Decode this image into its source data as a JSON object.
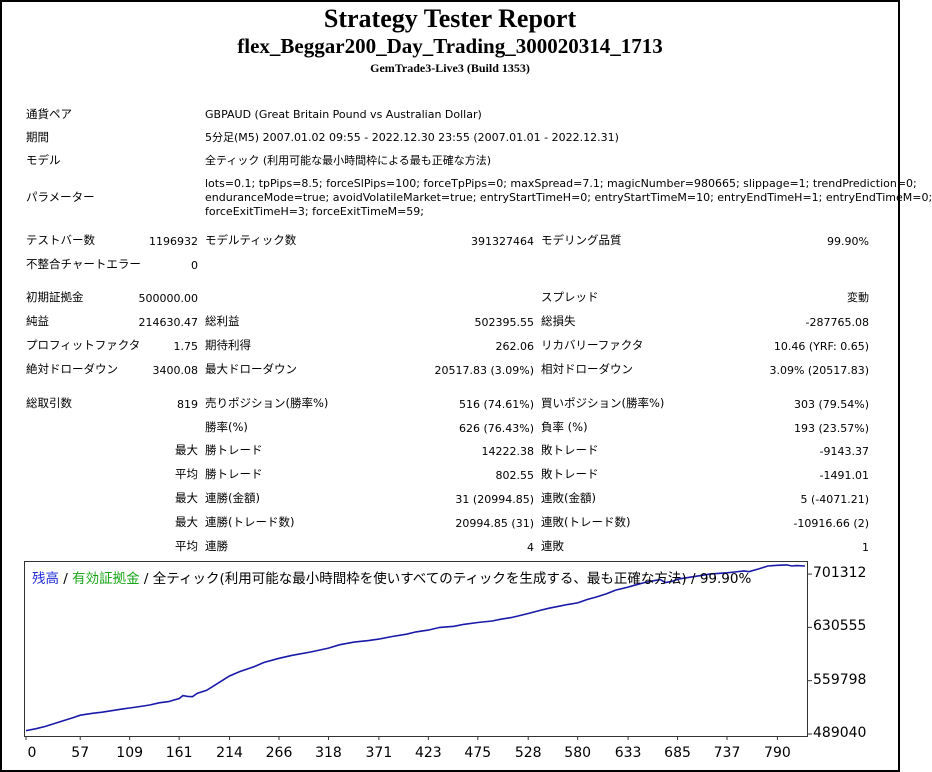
{
  "header": {
    "title": "Strategy Tester Report",
    "ea_name": "flex_Beggar200_Day_Trading_300020314_1713",
    "server": "GemTrade3-Live3 (Build 1353)"
  },
  "info": {
    "symbol_label": "通貨ペア",
    "symbol_value": "GBPAUD (Great Britain Pound vs Australian Dollar)",
    "period_label": "期間",
    "period_value": "5分足(M5) 2007.01.02 09:55 - 2022.12.30 23:55 (2007.01.01 - 2022.12.31)",
    "model_label": "モデル",
    "model_value": "全ティック (利用可能な最小時間枠による最も正確な方法)",
    "params_label": "パラメーター",
    "params_lines": [
      "lots=0.1; tpPips=8.5; forceSlPips=100; forceTpPips=0; maxSpread=7.1; magicNumber=980665; slippage=1; trendPrediction=0;",
      "enduranceMode=true; avoidVolatileMarket=true; entryStartTimeH=0; entryStartTimeM=10; entryEndTimeH=1; entryEndTimeM=0;",
      "forceExitTimeH=3; forceExitTimeM=59;"
    ]
  },
  "stats": {
    "bars_label": "テストバー数",
    "bars_value": "1196932",
    "ticks_label": "モデルティック数",
    "ticks_value": "391327464",
    "quality_label": "モデリング品質",
    "quality_value": "99.90%",
    "mismatch_label": "不整合チャートエラー",
    "mismatch_value": "0",
    "deposit_label": "初期証拠金",
    "deposit_value": "500000.00",
    "spread_label": "スプレッド",
    "spread_value": "変動",
    "net_label": "純益",
    "net_value": "214630.47",
    "gross_profit_label": "総利益",
    "gross_profit_value": "502395.55",
    "gross_loss_label": "総損失",
    "gross_loss_value": "-287765.08",
    "pf_label": "プロフィットファクタ",
    "pf_value": "1.75",
    "expected_label": "期待利得",
    "expected_value": "262.06",
    "recovery_label": "リカバリーファクタ",
    "recovery_value": "10.46 (YRF: 0.65)",
    "abs_dd_label": "絶対ドローダウン",
    "abs_dd_value": "3400.08",
    "max_dd_label": "最大ドローダウン",
    "max_dd_value": "20517.83 (3.09%)",
    "rel_dd_label": "相対ドローダウン",
    "rel_dd_value": "3.09% (20517.83)",
    "total_trades_label": "総取引数",
    "total_trades_value": "819",
    "short_label": "売りポジション(勝率%)",
    "short_value": "516 (74.61%)",
    "long_label": "買いポジション(勝率%)",
    "long_value": "303 (79.54%)",
    "win_pct_label": "勝率(%)",
    "win_pct_value": "626 (76.43%)",
    "loss_pct_label": "負率 (%)",
    "loss_pct_value": "193 (23.57%)",
    "largest": "最大",
    "average": "平均",
    "win_trade_label": "勝トレード",
    "loss_trade_label": "敗トレード",
    "largest_win_value": "14222.38",
    "largest_loss_value": "-9143.37",
    "avg_win_value": "802.55",
    "avg_loss_value": "-1491.01",
    "max_cons_win_amt_label": "連勝(金額)",
    "max_cons_win_amt_value": "31 (20994.85)",
    "max_cons_loss_amt_label": "連敗(金額)",
    "max_cons_loss_amt_value": "5 (-4071.21)",
    "max_cons_win_cnt_label": "連勝(トレード数)",
    "max_cons_win_cnt_value": "20994.85 (31)",
    "max_cons_loss_cnt_label": "連敗(トレード数)",
    "max_cons_loss_cnt_value": "-10916.66 (2)",
    "avg_cons_win_label": "連勝",
    "avg_cons_win_value": "4",
    "avg_cons_loss_label": "連敗",
    "avg_cons_loss_value": "1"
  },
  "chart_caption": {
    "balance": "残高",
    "sep1": " / ",
    "equity": "有効証拠金",
    "rest": " / 全ティック(利用可能な最小時間枠を使いすべてのティックを生成する、最も正確な方法) / 99.90%"
  },
  "colors": {
    "balance": "#1e2ad8",
    "equity": "#19a519",
    "line": "#1a1aa8"
  },
  "chart_data": {
    "type": "line",
    "xlabel": "",
    "ylabel": "",
    "x_ticks": [
      0,
      57,
      109,
      161,
      214,
      266,
      318,
      371,
      423,
      475,
      528,
      580,
      633,
      685,
      737,
      790
    ],
    "y_ticks": [
      701312,
      630555,
      559798,
      489040
    ],
    "xlim": [
      0,
      819
    ],
    "ylim": [
      489040,
      716000
    ],
    "series": [
      {
        "name": "残高",
        "x": [
          0,
          10,
          20,
          30,
          40,
          50,
          57,
          70,
          80,
          90,
          100,
          109,
          120,
          130,
          140,
          150,
          155,
          161,
          165,
          170,
          175,
          180,
          190,
          200,
          214,
          225,
          240,
          250,
          266,
          280,
          300,
          318,
          330,
          345,
          360,
          371,
          385,
          400,
          410,
          423,
          435,
          450,
          460,
          475,
          490,
          500,
          510,
          520,
          528,
          540,
          550,
          560,
          570,
          580,
          590,
          600,
          610,
          620,
          633,
          640,
          650,
          660,
          667,
          672,
          680,
          685,
          700,
          710,
          720,
          737,
          745,
          755,
          760,
          770,
          775,
          780,
          790,
          800,
          805,
          810,
          819
        ],
        "y": [
          493500,
          496000,
          499000,
          503000,
          507000,
          511000,
          514000,
          516500,
          518000,
          520000,
          522000,
          523500,
          525500,
          527500,
          530500,
          532000,
          534000,
          536000,
          540000,
          539000,
          538500,
          543000,
          547000,
          555000,
          566000,
          572000,
          578500,
          584000,
          589500,
          593500,
          598000,
          603000,
          607500,
          611000,
          613000,
          615000,
          618500,
          621500,
          624500,
          627000,
          630500,
          632000,
          634500,
          637000,
          639000,
          641500,
          643500,
          646500,
          649000,
          653000,
          656000,
          658500,
          661000,
          663000,
          667500,
          671000,
          675000,
          680000,
          684000,
          686500,
          690000,
          692500,
          694000,
          690000,
          692000,
          694500,
          697500,
          699500,
          701500,
          703000,
          704000,
          705500,
          704500,
          708000,
          710000,
          712000,
          713000,
          713500,
          712000,
          712500,
          712000
        ]
      }
    ]
  }
}
